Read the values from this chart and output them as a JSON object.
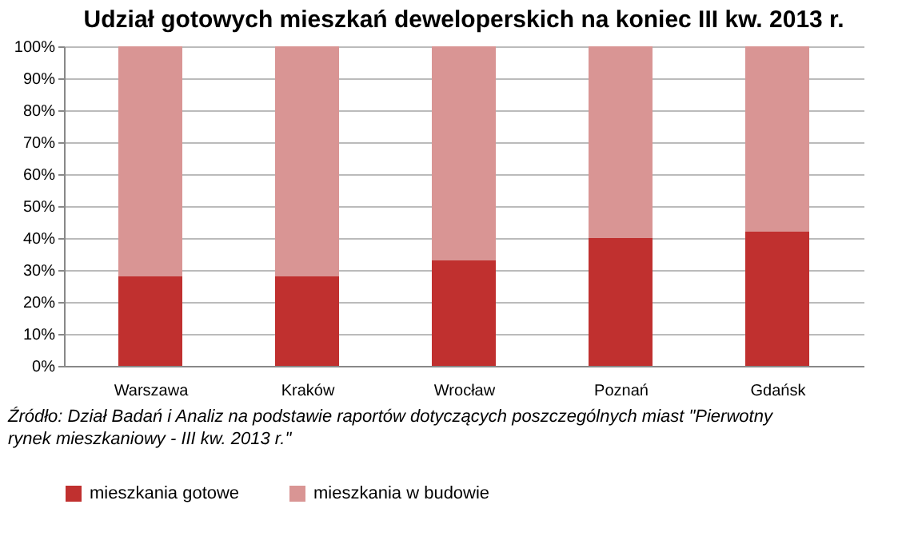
{
  "chart_data": {
    "type": "bar",
    "stacked": true,
    "title": "Udział gotowych mieszkań deweloperskich na koniec III kw. 2013 r.",
    "categories": [
      "Warszawa",
      "Kraków",
      "Wrocław",
      "Poznań",
      "Gdańsk"
    ],
    "series": [
      {
        "name": "mieszkania gotowe",
        "color": "#c0302f",
        "values": [
          28,
          28,
          33,
          40,
          42
        ]
      },
      {
        "name": "mieszkania w budowie",
        "color": "#d99594",
        "values": [
          72,
          72,
          67,
          60,
          58
        ]
      }
    ],
    "ylim": [
      0,
      100
    ],
    "yticks": [
      {
        "value": 0,
        "label": "0%"
      },
      {
        "value": 10,
        "label": "10%"
      },
      {
        "value": 20,
        "label": "20%"
      },
      {
        "value": 30,
        "label": "30%"
      },
      {
        "value": 40,
        "label": "40%"
      },
      {
        "value": 50,
        "label": "50%"
      },
      {
        "value": 60,
        "label": "60%"
      },
      {
        "value": 70,
        "label": "70%"
      },
      {
        "value": 80,
        "label": "80%"
      },
      {
        "value": 90,
        "label": "90%"
      },
      {
        "value": 100,
        "label": "100%"
      }
    ],
    "grid": "y",
    "legend": "bottom",
    "annotations": [
      "Źródło: Dział Badań i Analiz na podstawie raportów dotyczących poszczególnych miast \"Pierwotny rynek mieszkaniowy - III kw. 2013 r.\""
    ]
  }
}
